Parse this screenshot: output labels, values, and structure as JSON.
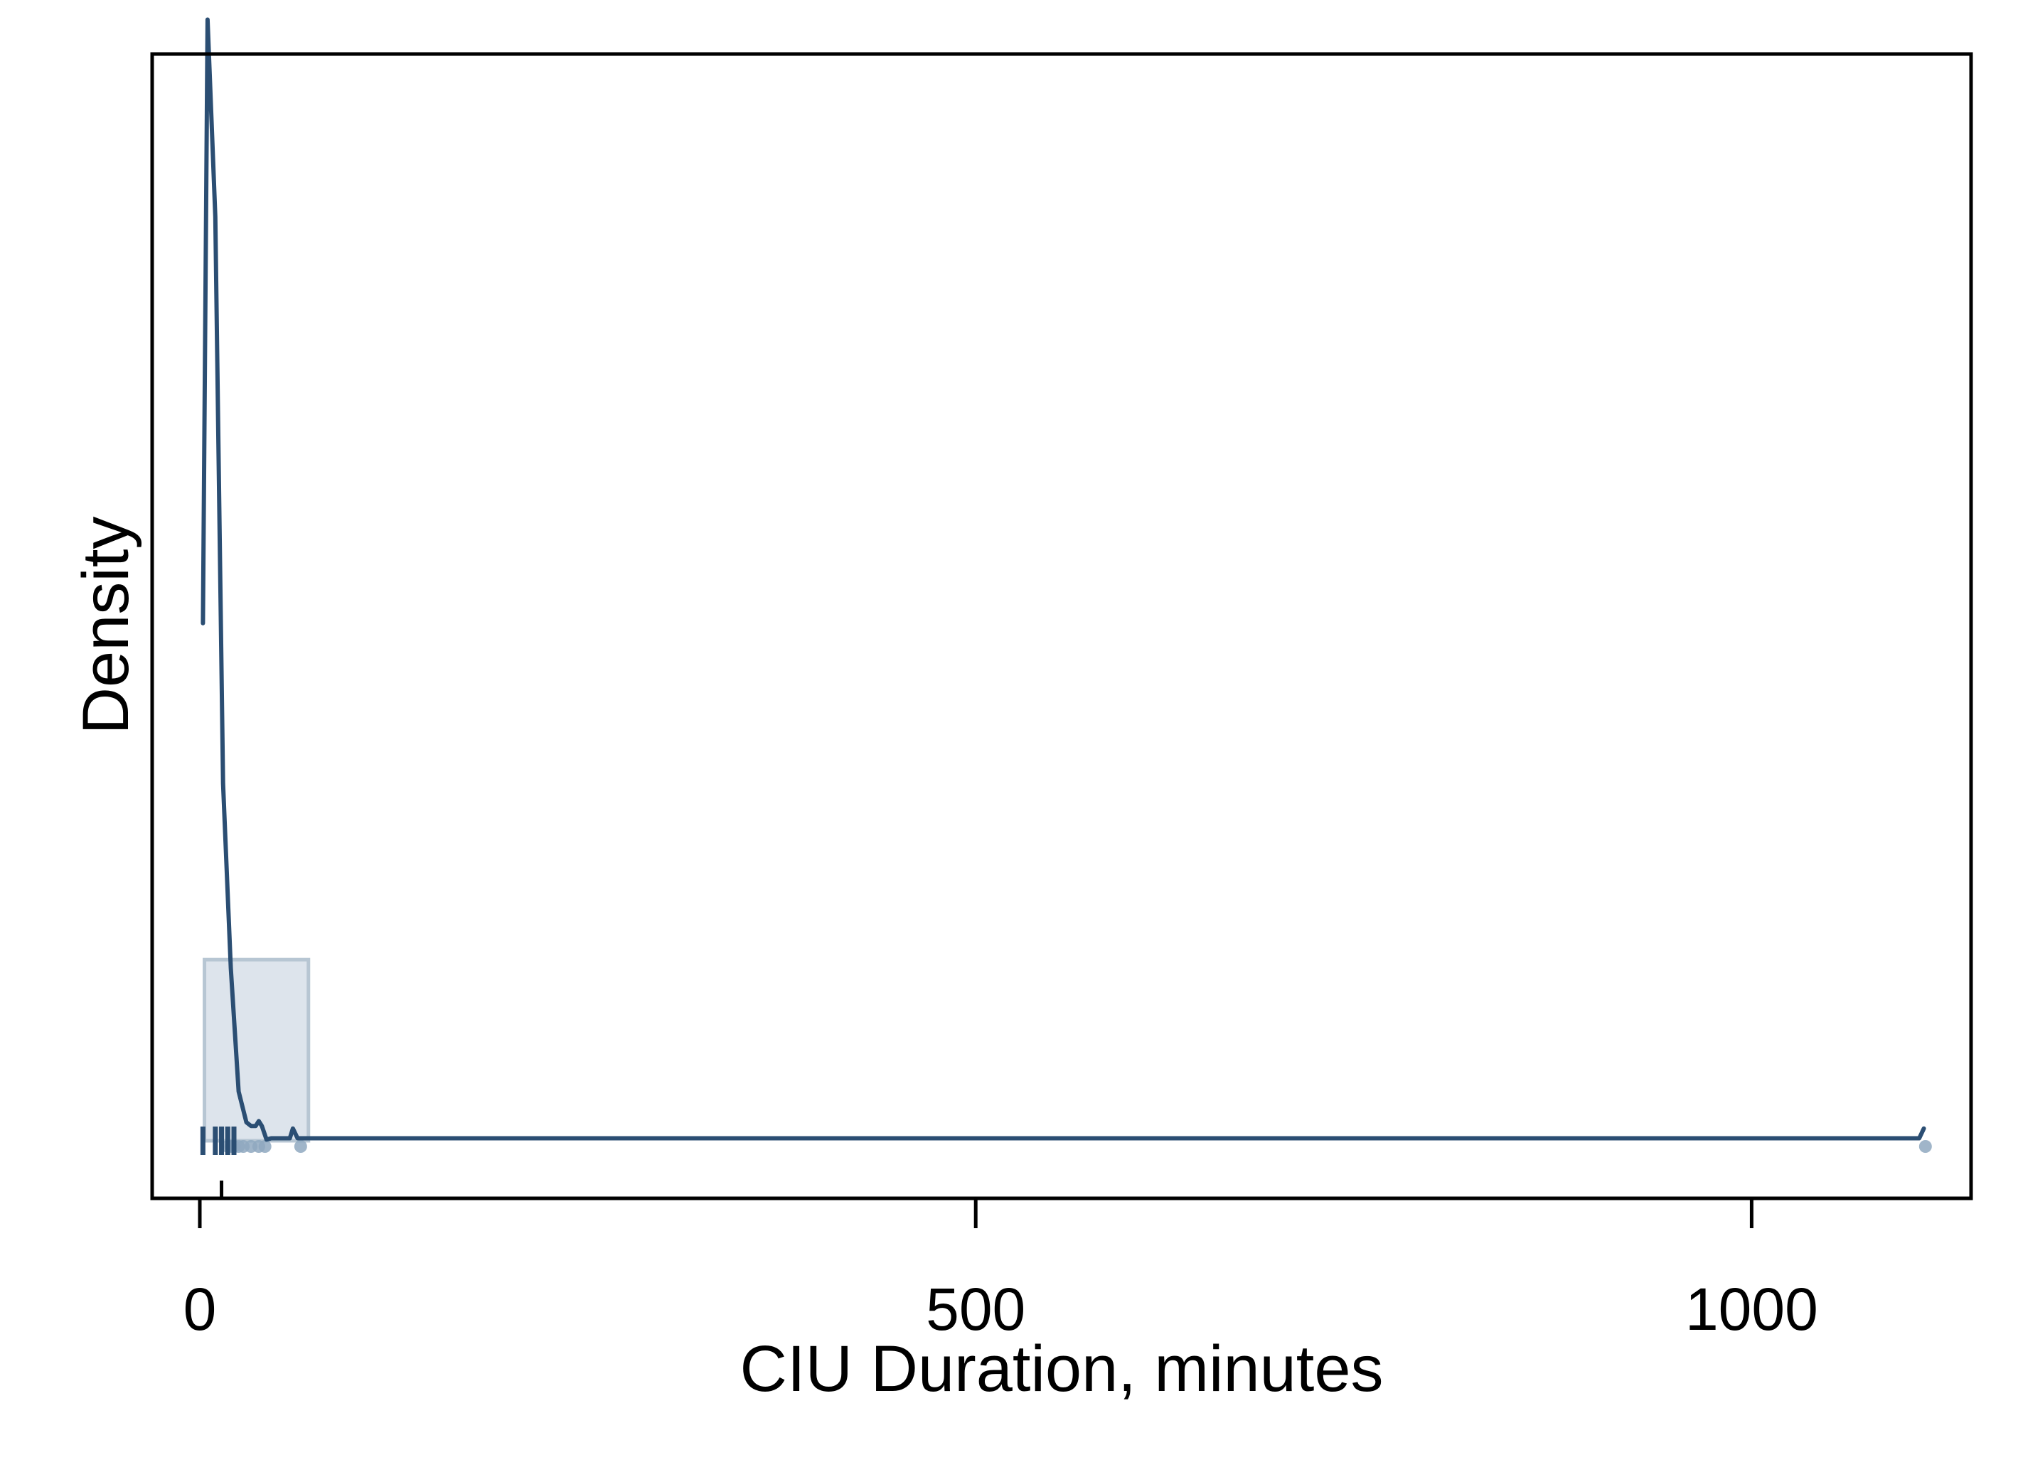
{
  "chart_data": {
    "type": "line",
    "title": "",
    "xlabel": "CIU Duration, minutes",
    "ylabel": "Density",
    "xlim": [
      -30,
      1145
    ],
    "ylim": [
      -0.003,
      0.1
    ],
    "x_ticks": [
      "0",
      "500",
      "1000"
    ],
    "grid": false,
    "colors": {
      "line": "#2b4e73",
      "box_fill": "#dde4ec",
      "box_edge": "#b7c6d3",
      "points": "#8fa8bf"
    },
    "series": [
      {
        "type": "line",
        "x": [
          2,
          5,
          10,
          15,
          20,
          25,
          30,
          33,
          36,
          38,
          40,
          43,
          46,
          50,
          55,
          58,
          60,
          63,
          66,
          100,
          500,
          1000,
          1100,
          1108,
          1111
        ],
        "y": [
          0.042,
          0.091,
          0.075,
          0.029,
          0.014,
          0.004,
          0.0015,
          0.0012,
          0.0012,
          0.0016,
          0.0012,
          0.0001,
          0.0002,
          0.0002,
          0.0002,
          0.0002,
          0.001,
          0.0002,
          0.0002,
          0.0002,
          0.0002,
          0.0002,
          0.0002,
          0.0002,
          0.001
        ]
      }
    ],
    "boxplot": {
      "min": 2,
      "q1": 3,
      "median": 14,
      "q3": 70,
      "max": 70,
      "box_height_density": 0.0147
    },
    "outliers_x": [
      18,
      20,
      22,
      25,
      28,
      33,
      38,
      42,
      65,
      1112
    ],
    "rug_x": [
      2,
      10,
      14,
      18,
      22
    ]
  }
}
